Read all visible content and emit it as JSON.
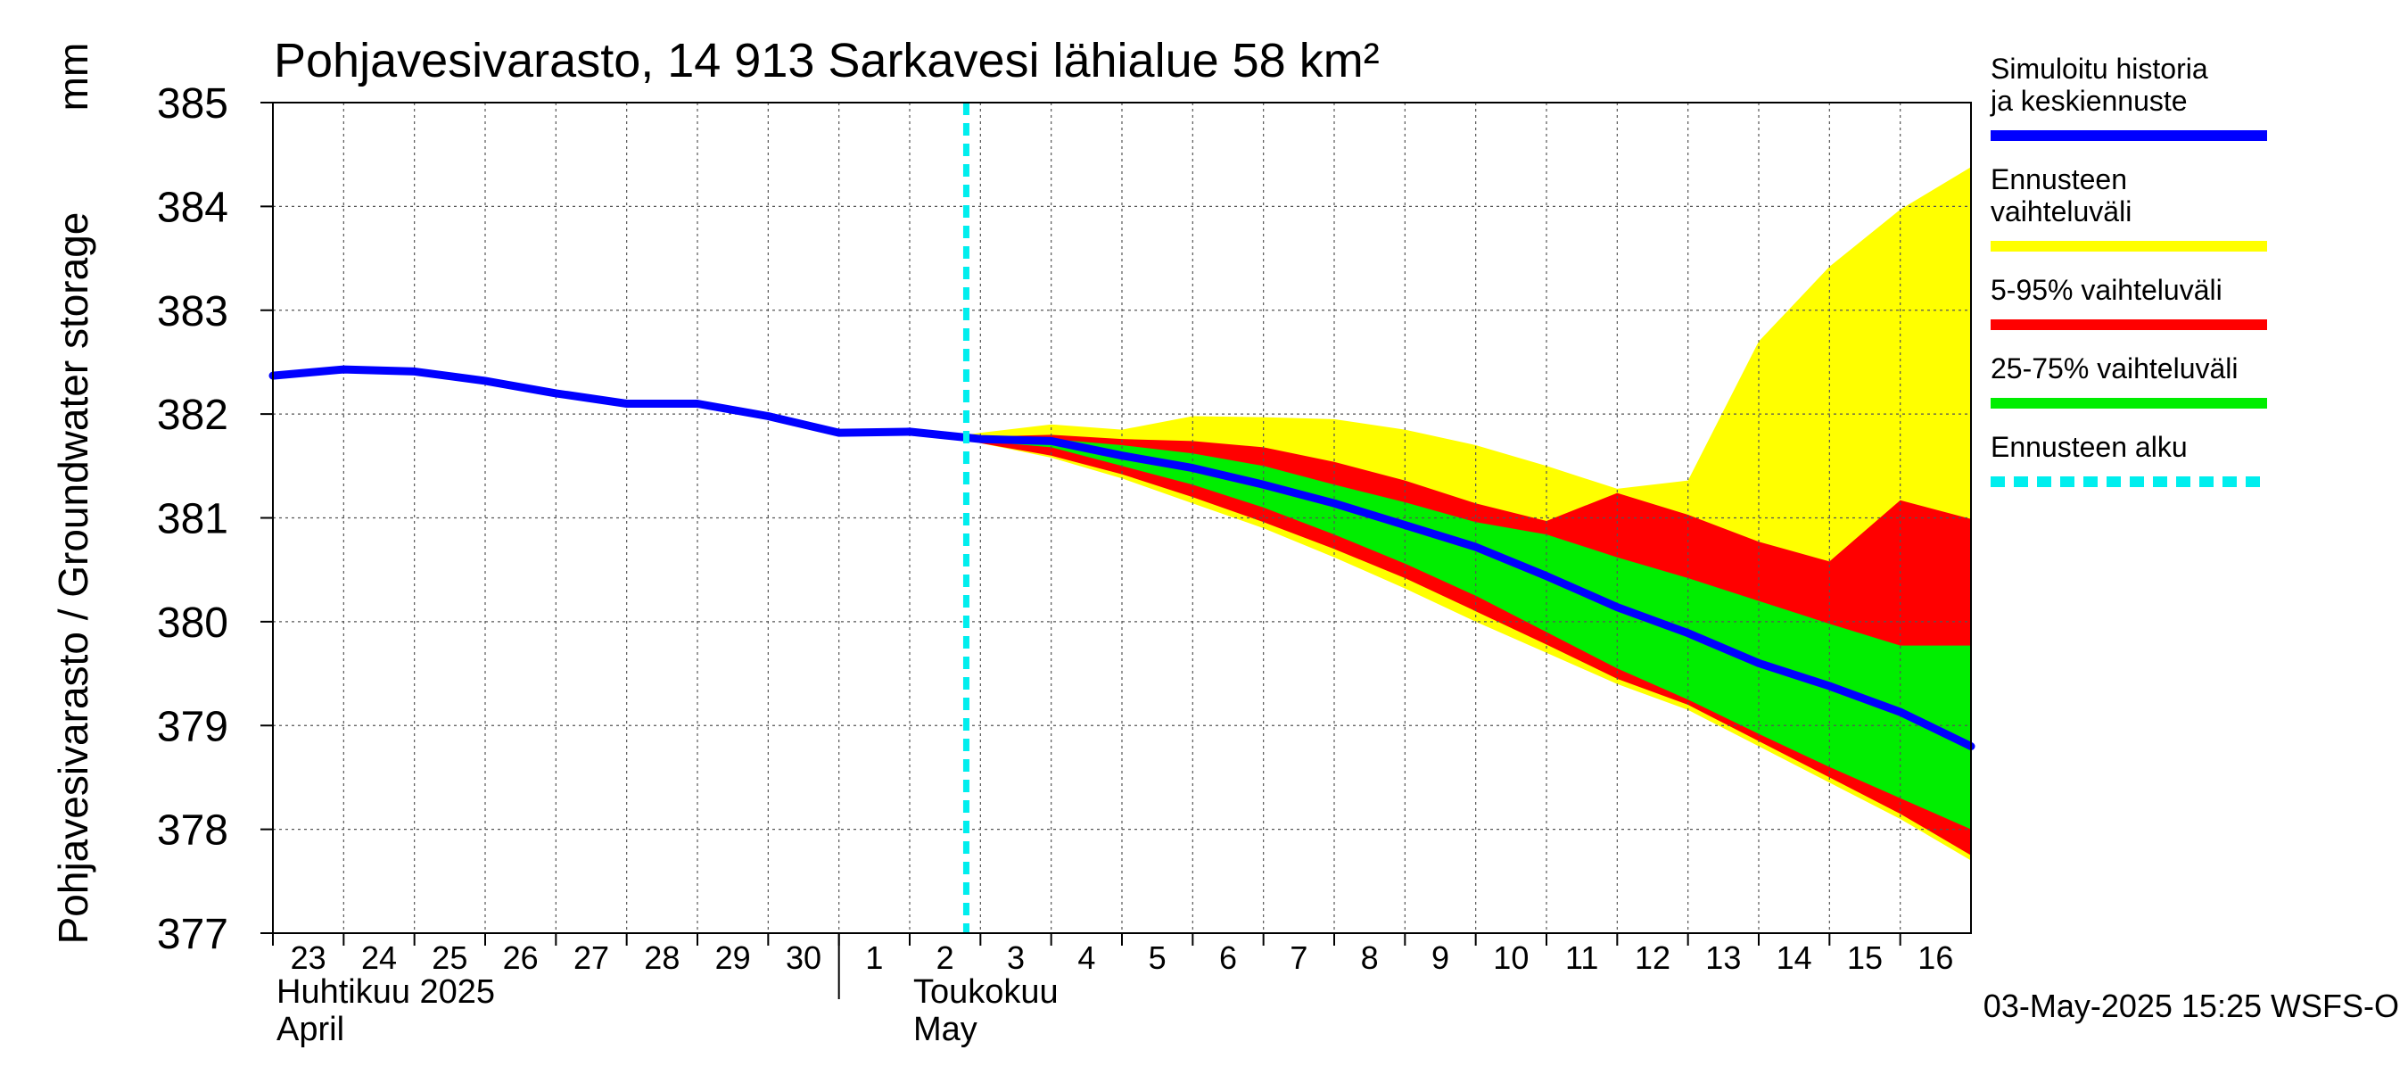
{
  "chart_data": {
    "type": "area",
    "title": "Pohjavesivarasto, 14 913 Sarkavesi lähialue 58 km²",
    "ylabel": "Pohjavesivarasto / Groundwater storage",
    "yunit": "mm",
    "ylim": [
      377,
      385
    ],
    "yticks": [
      377,
      378,
      379,
      380,
      381,
      382,
      383,
      384,
      385
    ],
    "grid": true,
    "x_start_date": "2025-04-23",
    "xlim_days": [
      0,
      24
    ],
    "day_ticks": [
      {
        "d": 0,
        "label": "23"
      },
      {
        "d": 1,
        "label": "24"
      },
      {
        "d": 2,
        "label": "25"
      },
      {
        "d": 3,
        "label": "26"
      },
      {
        "d": 4,
        "label": "27"
      },
      {
        "d": 5,
        "label": "28"
      },
      {
        "d": 6,
        "label": "29"
      },
      {
        "d": 7,
        "label": "30"
      },
      {
        "d": 8,
        "label": "1"
      },
      {
        "d": 9,
        "label": "2"
      },
      {
        "d": 10,
        "label": "3"
      },
      {
        "d": 11,
        "label": "4"
      },
      {
        "d": 12,
        "label": "5"
      },
      {
        "d": 13,
        "label": "6"
      },
      {
        "d": 14,
        "label": "7"
      },
      {
        "d": 15,
        "label": "8"
      },
      {
        "d": 16,
        "label": "9"
      },
      {
        "d": 17,
        "label": "10"
      },
      {
        "d": 18,
        "label": "11"
      },
      {
        "d": 19,
        "label": "12"
      },
      {
        "d": 20,
        "label": "13"
      },
      {
        "d": 21,
        "label": "14"
      },
      {
        "d": 22,
        "label": "15"
      },
      {
        "d": 23,
        "label": "16"
      }
    ],
    "month_labels": [
      {
        "d": 0,
        "line1": "Huhtikuu  2025",
        "line2": "April"
      },
      {
        "d": 9,
        "line1": "Toukokuu",
        "line2": "May"
      }
    ],
    "month_boundary_day": 8,
    "forecast_start_day": 9.8,
    "x": [
      0,
      1,
      2,
      3,
      4,
      5,
      6,
      7,
      8,
      9,
      10,
      11,
      12,
      13,
      14,
      15,
      16,
      17,
      18,
      19,
      20,
      21,
      22,
      23,
      24
    ],
    "series": [
      {
        "name": "Simuloitu historia ja keskiennuste",
        "color": "#0000ff",
        "x": [
          0,
          1,
          2,
          3,
          4,
          5,
          6,
          7,
          8,
          9,
          10,
          11,
          12,
          13,
          14,
          15,
          16,
          17,
          18,
          19,
          20,
          21,
          22,
          23,
          24
        ],
        "values": [
          382.37,
          382.43,
          382.41,
          382.32,
          382.2,
          382.1,
          382.1,
          381.98,
          381.82,
          381.83,
          381.76,
          381.74,
          381.6,
          381.48,
          381.32,
          381.14,
          380.93,
          380.72,
          380.44,
          380.14,
          379.89,
          379.6,
          379.38,
          379.13,
          378.8
        ]
      }
    ],
    "bands": [
      {
        "name": "Ennusteen vaihteluväli",
        "color": "#ffff00",
        "x": [
          9.8,
          10,
          11,
          12,
          13,
          14,
          15,
          16,
          17,
          18,
          19,
          20,
          21,
          22,
          23,
          24
        ],
        "upper": [
          381.8,
          381.82,
          381.9,
          381.85,
          381.98,
          381.97,
          381.95,
          381.85,
          381.7,
          381.5,
          381.28,
          381.36,
          382.7,
          383.42,
          383.97,
          384.38
        ],
        "lower": [
          381.75,
          381.72,
          381.58,
          381.38,
          381.14,
          380.9,
          380.62,
          380.32,
          380.0,
          379.7,
          379.4,
          379.15,
          378.8,
          378.45,
          378.1,
          377.7
        ]
      },
      {
        "name": "5-95% vaihteluväli",
        "color": "#ff0000",
        "x": [
          9.8,
          10,
          11,
          12,
          13,
          14,
          15,
          16,
          17,
          18,
          19,
          20,
          21,
          22,
          23,
          24
        ],
        "upper": [
          381.78,
          381.78,
          381.8,
          381.76,
          381.74,
          381.68,
          381.54,
          381.36,
          381.14,
          380.97,
          381.24,
          381.03,
          380.77,
          380.58,
          381.17,
          380.99
        ],
        "lower": [
          381.75,
          381.72,
          381.6,
          381.42,
          381.2,
          380.96,
          380.7,
          380.42,
          380.1,
          379.78,
          379.45,
          379.2,
          378.85,
          378.5,
          378.15,
          377.75
        ]
      },
      {
        "name": "25-75% vaihteluväli",
        "color": "#00ee00",
        "x": [
          9.8,
          10,
          11,
          12,
          13,
          14,
          15,
          16,
          17,
          18,
          19,
          20,
          21,
          22,
          23,
          24
        ],
        "upper": [
          381.77,
          381.76,
          381.76,
          381.7,
          381.62,
          381.5,
          381.32,
          381.15,
          380.96,
          380.84,
          380.62,
          380.42,
          380.2,
          379.98,
          379.77,
          379.77
        ],
        "lower": [
          381.76,
          381.74,
          381.68,
          381.5,
          381.32,
          381.1,
          380.84,
          380.56,
          380.25,
          379.9,
          379.55,
          379.25,
          378.92,
          378.6,
          378.3,
          378.0
        ]
      }
    ],
    "legend": {
      "placement": "right",
      "entries": [
        {
          "label": "Simuloitu historia ja keskiennuste",
          "color": "#0000ff",
          "style": "solid"
        },
        {
          "label": "Ennusteen vaihteluväli",
          "color": "#ffff00",
          "style": "solid"
        },
        {
          "label": "5-95% vaihteluväli",
          "color": "#ff0000",
          "style": "solid"
        },
        {
          "label": "25-75% vaihteluväli",
          "color": "#00ee00",
          "style": "solid"
        },
        {
          "label": "Ennusteen alku",
          "color": "#00eeee",
          "style": "dashed"
        }
      ]
    },
    "footer": "03-May-2025 15:25 WSFS-O"
  }
}
